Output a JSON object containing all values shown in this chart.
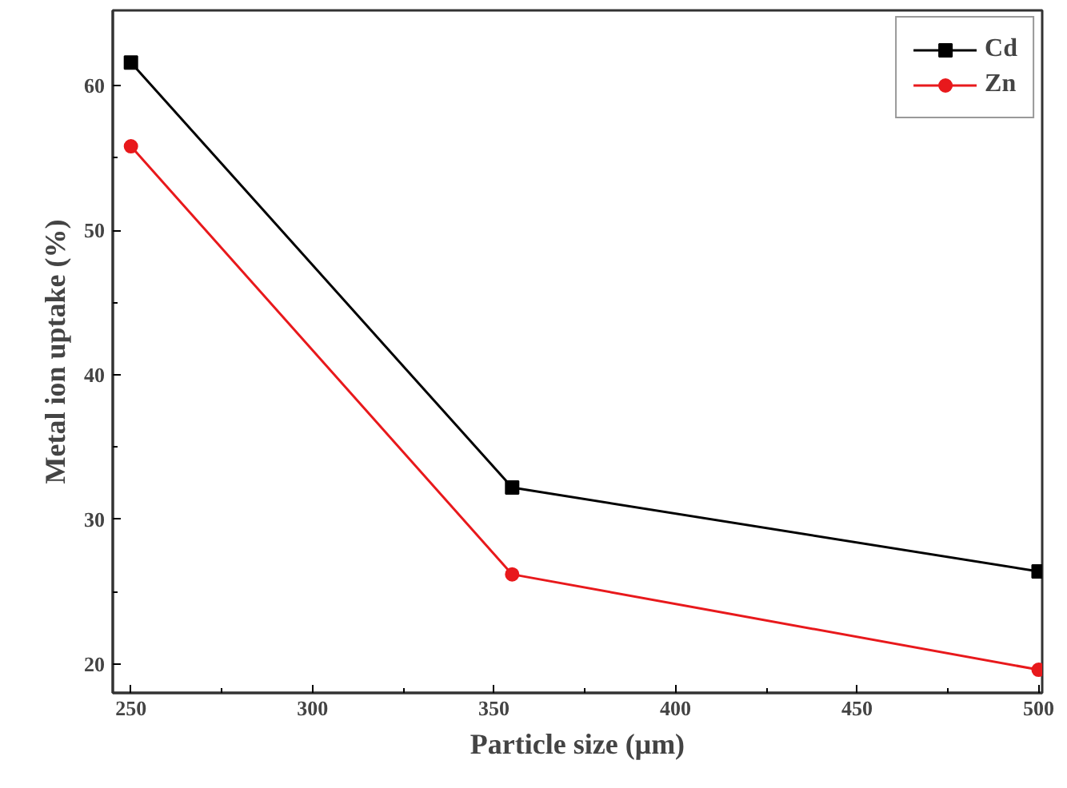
{
  "chart_data": {
    "type": "line",
    "xlabel": "Particle size (μm)",
    "ylabel": "Metal ion uptake (%)",
    "x": [
      250,
      355,
      500
    ],
    "series": [
      {
        "name": "Cd",
        "color": "#000000",
        "marker": "square",
        "values": [
          61.6,
          32.2,
          26.4
        ]
      },
      {
        "name": "Zn",
        "color": "#e8191c",
        "marker": "circle",
        "values": [
          55.8,
          26.2,
          19.6
        ]
      }
    ],
    "xlim": [
      245,
      501
    ],
    "ylim": [
      18,
      65.2
    ],
    "xticks": [
      250,
      {
        "value": 275,
        "label": null
      },
      300,
      {
        "value": 325,
        "label": null
      },
      350,
      {
        "value": 375,
        "label": null
      },
      400,
      {
        "value": 425,
        "label": null
      },
      450,
      {
        "value": 475,
        "label": null
      },
      500
    ],
    "yticks": [
      20,
      {
        "value": 25,
        "label": null
      },
      30,
      {
        "value": 35,
        "label": null
      },
      40,
      {
        "value": 45,
        "label": null
      },
      50,
      {
        "value": 55,
        "label": null
      },
      60
    ],
    "grid": false,
    "legend": "top right"
  }
}
